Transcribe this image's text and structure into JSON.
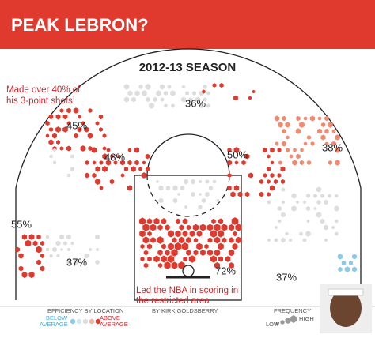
{
  "header": {
    "title": "PEAK LEBRON?"
  },
  "chart": {
    "title": "2012-13 SEASON",
    "zones": [
      {
        "label": "36%"
      },
      {
        "label": "45%"
      },
      {
        "label": "48%"
      },
      {
        "label": "50%"
      },
      {
        "label": "38%"
      },
      {
        "label": "55%"
      },
      {
        "label": "37%"
      },
      {
        "label": "72%"
      },
      {
        "label": "37%"
      }
    ],
    "annotations": [
      [
        "Made over 40% of",
        "his 3-point shots!"
      ],
      [
        "Led the NBA in scoring in",
        "the restricted area"
      ]
    ],
    "legend": {
      "efficiency": {
        "title": "EFFICIENCY BY LOCATION",
        "below": [
          "BELOW",
          "AVERAGE"
        ],
        "above": [
          "ABOVE",
          "AVERAGE"
        ]
      },
      "credit": "BY KIRK GOLDSBERRY",
      "frequency": {
        "title": "FREQUENCY",
        "low": "LOW",
        "high": "HIGH"
      }
    }
  }
}
